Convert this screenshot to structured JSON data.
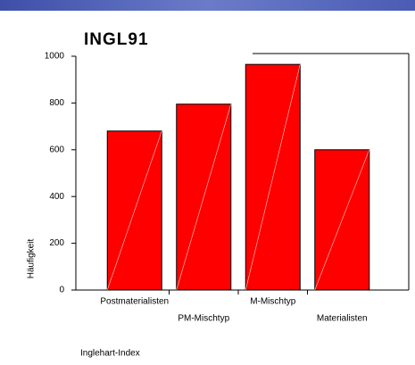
{
  "chart_data": {
    "type": "bar",
    "title": "INGL91",
    "categories": [
      "Postmaterialisten",
      "PM-Mischtyp",
      "M-Mischtyp",
      "Materialisten"
    ],
    "values": [
      680,
      795,
      965,
      600
    ],
    "color": "#ff0000",
    "ylim": [
      0,
      1000
    ],
    "yticks": [
      0,
      200,
      400,
      600,
      800,
      1000
    ],
    "x_label": "Inglehart-Index",
    "y_label": "Häufigkeit"
  }
}
